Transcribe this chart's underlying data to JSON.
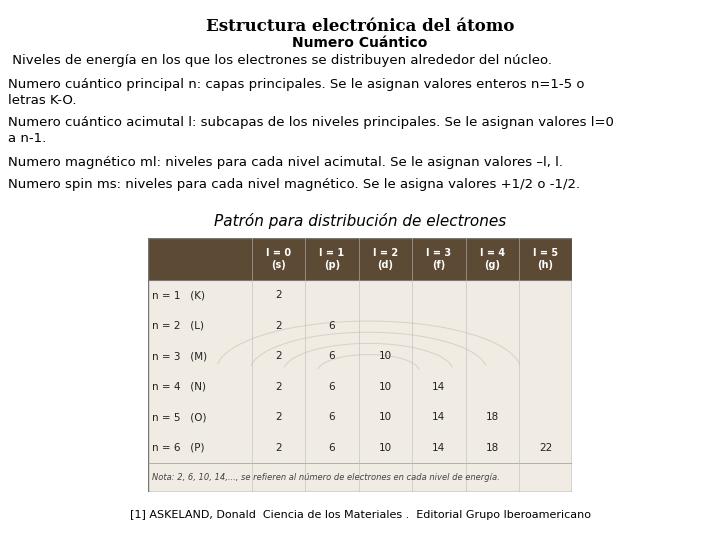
{
  "title": "Estructura electrónica del átomo",
  "subtitle": "Numero Cuántico",
  "line1": " Niveles de energía en los que los electrones se distribuyen alrededor del núcleo.",
  "para1_line1": "Numero cuántico principal n: capas principales. Se le asignan valores enteros n=1-5 o",
  "para1_line2": "letras K-O.",
  "para2_line1": "Numero cuántico acimutal l: subcapas de los niveles principales. Se le asignan valores l=0",
  "para2_line2": "a n-1.",
  "para3": "Numero magnético ml: niveles para cada nivel acimutal. Se le asignan valores –l, l.",
  "para4": "Numero spin ms: niveles para cada nivel magnético. Se le asigna valores +1/2 o -1/2.",
  "table_title": "Patrón para distribución de electrones",
  "reference": "[1] ASKELAND, Donald  Ciencia de los Materiales .  Editorial Grupo Iberoamericano",
  "bg_color": "#ffffff",
  "title_fontsize": 12,
  "subtitle_fontsize": 10,
  "body_fontsize": 9.5,
  "ref_fontsize": 8,
  "table_header_color": "#5c4a35",
  "table_header_text_color": "#ffffff",
  "table_bg_color": "#f0ebe3",
  "table_headers": [
    "",
    "l = 0\n(s)",
    "l = 1\n(p)",
    "l = 2\n(d)",
    "l = 3\n(f)",
    "l = 4\n(g)",
    "l = 5\n(h)"
  ],
  "table_rows": [
    [
      "n = 1   (K)",
      "2",
      "",
      "",
      "",
      "",
      ""
    ],
    [
      "n = 2   (L)",
      "2",
      "6",
      "",
      "",
      "",
      ""
    ],
    [
      "n = 3   (M)",
      "2",
      "6",
      "10",
      "",
      "",
      ""
    ],
    [
      "n = 4   (N)",
      "2",
      "6",
      "10",
      "14",
      "",
      ""
    ],
    [
      "n = 5   (O)",
      "2",
      "6",
      "10",
      "14",
      "18",
      ""
    ],
    [
      "n = 6   (P)",
      "2",
      "6",
      "10",
      "14",
      "18",
      "22"
    ]
  ],
  "table_note": "Nota: 2, 6, 10, 14,..., se refieren al número de electrones en cada nivel de energía."
}
